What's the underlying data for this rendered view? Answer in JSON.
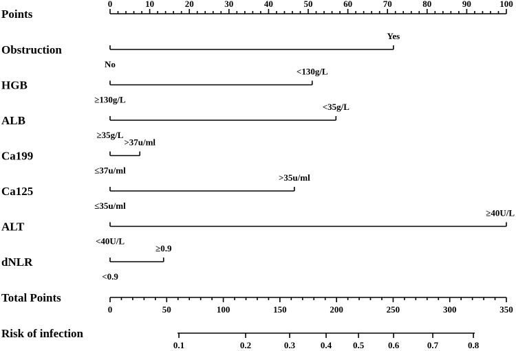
{
  "chart_data": {
    "type": "nomogram",
    "points_axis": {
      "title": "Points",
      "xlim": [
        0,
        100
      ],
      "xticks": [
        0,
        10,
        20,
        30,
        40,
        50,
        60,
        70,
        80,
        90,
        100
      ]
    },
    "variables": [
      {
        "name": "Obstruction",
        "levels": [
          "No",
          "Yes"
        ],
        "points": [
          0,
          71.5
        ]
      },
      {
        "name": "HGB",
        "levels": [
          "≥130g/L",
          "<130g/L"
        ],
        "points": [
          0,
          51
        ]
      },
      {
        "name": "ALB",
        "levels": [
          "≥35g/L",
          "<35g/L"
        ],
        "points": [
          0,
          57
        ]
      },
      {
        "name": "Ca199",
        "levels": [
          "≤37u/ml",
          ">37u/ml"
        ],
        "points": [
          0,
          7.5
        ]
      },
      {
        "name": "Ca125",
        "levels": [
          "≤35u/ml",
          ">35u/ml"
        ],
        "points": [
          0,
          46.5
        ]
      },
      {
        "name": "ALT",
        "levels": [
          "<40U/L",
          "≥40U/L"
        ],
        "points": [
          0,
          100
        ]
      },
      {
        "name": "dNLR",
        "levels": [
          "<0.9",
          "≥0.9"
        ],
        "points": [
          0,
          13.5
        ]
      }
    ],
    "total_points_axis": {
      "title": "Total Points",
      "xlim": [
        0,
        350
      ],
      "xticks": [
        0,
        50,
        100,
        150,
        200,
        250,
        300,
        350
      ]
    },
    "risk_axis": {
      "title": "Risk of infection",
      "values": [
        0.1,
        0.2,
        0.3,
        0.4,
        0.5,
        0.6,
        0.7,
        0.8
      ],
      "total_points": [
        60.8,
        119.7,
        158.6,
        190.8,
        219.4,
        250.4,
        285,
        320.9
      ]
    }
  }
}
